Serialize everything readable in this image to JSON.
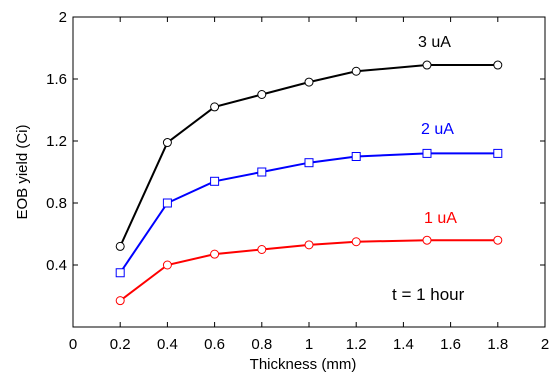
{
  "chart_data": {
    "type": "line",
    "xlabel": "Thickness (mm)",
    "ylabel": "EOB yield (Ci)",
    "xlim": [
      0,
      2
    ],
    "ylim": [
      0,
      2
    ],
    "x_ticks": [
      "0",
      "0.2",
      "0.4",
      "0.6",
      "0.8",
      "1",
      "1.2",
      "1.4",
      "1.6",
      "1.8",
      "2"
    ],
    "y_ticks": [
      "0.4",
      "0.8",
      "1.2",
      "1.6",
      "2"
    ],
    "grid": false,
    "annotation": "t = 1 hour",
    "series": [
      {
        "name": "3 uA",
        "color": "#000000",
        "marker": "circle",
        "x": [
          0.2,
          0.4,
          0.6,
          0.8,
          1.0,
          1.2,
          1.5,
          1.8
        ],
        "y": [
          0.52,
          1.19,
          1.42,
          1.5,
          1.58,
          1.65,
          1.69,
          1.69
        ]
      },
      {
        "name": "2 uA",
        "color": "#0000ff",
        "marker": "square",
        "x": [
          0.2,
          0.4,
          0.6,
          0.8,
          1.0,
          1.2,
          1.5,
          1.8
        ],
        "y": [
          0.35,
          0.8,
          0.94,
          1.0,
          1.06,
          1.1,
          1.12,
          1.12
        ]
      },
      {
        "name": "1 uA",
        "color": "#ff0000",
        "marker": "circle",
        "x": [
          0.2,
          0.4,
          0.6,
          0.8,
          1.0,
          1.2,
          1.5,
          1.8
        ],
        "y": [
          0.17,
          0.4,
          0.47,
          0.5,
          0.53,
          0.55,
          0.56,
          0.56
        ]
      }
    ]
  }
}
